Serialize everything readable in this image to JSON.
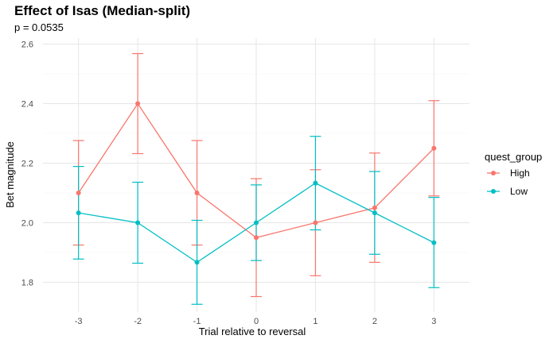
{
  "chart_data": {
    "type": "line",
    "title": "Effect of Isas (Median-split)",
    "subtitle": "p = 0.0535",
    "xlabel": "Trial relative to reversal",
    "ylabel": "Bet magnitude",
    "x": [
      -3,
      -2,
      -1,
      0,
      1,
      2,
      3
    ],
    "xticks": [
      "-3",
      "-2",
      "-1",
      "0",
      "1",
      "2",
      "3"
    ],
    "yticks": [
      "1.8",
      "2.0",
      "2.2",
      "2.4",
      "2.6"
    ],
    "ytick_values": [
      1.8,
      2.0,
      2.2,
      2.4,
      2.6
    ],
    "ylim": [
      1.7,
      2.62
    ],
    "grid": true,
    "legend": {
      "title": "quest_group",
      "position": "right"
    },
    "series": [
      {
        "name": "High",
        "color": "#F8766D",
        "values": [
          2.1,
          2.4,
          2.1,
          1.95,
          2.0,
          2.05,
          2.25
        ],
        "lower": [
          1.925,
          2.232,
          1.925,
          1.752,
          1.822,
          1.867,
          2.09
        ],
        "upper": [
          2.276,
          2.568,
          2.276,
          2.148,
          2.178,
          2.234,
          2.41
        ]
      },
      {
        "name": "Low",
        "color": "#00BFC4",
        "values": [
          2.033,
          2.0,
          1.867,
          2.0,
          2.133,
          2.033,
          1.933
        ],
        "lower": [
          1.878,
          1.864,
          1.726,
          1.873,
          1.976,
          1.894,
          1.782
        ],
        "upper": [
          2.189,
          2.136,
          2.008,
          2.127,
          2.29,
          2.172,
          2.085
        ]
      }
    ]
  }
}
